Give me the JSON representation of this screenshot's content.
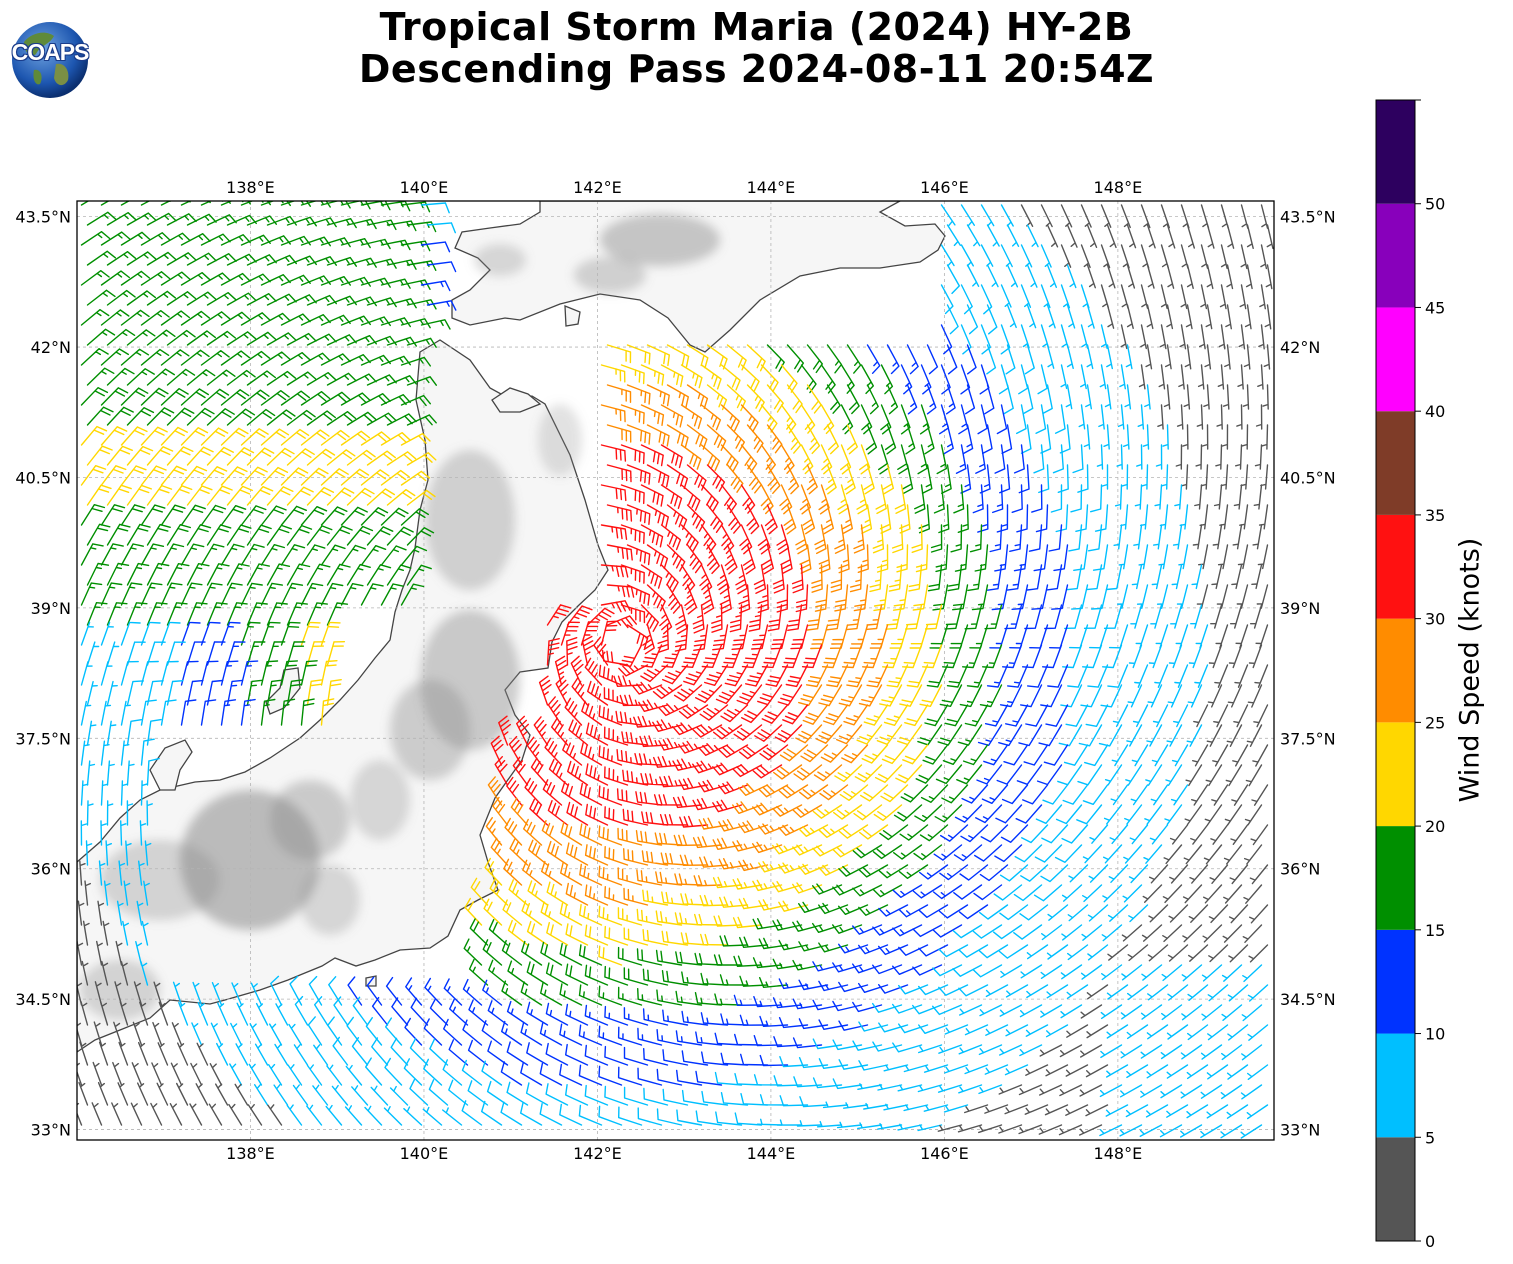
{
  "header": {
    "title_line1": "Tropical Storm Maria (2024) HY-2B",
    "title_line2": "Descending Pass 2024-08-11 20:54Z",
    "logo_text": "COAPS"
  },
  "map": {
    "lon_ticks": [
      {
        "value": 138,
        "label": "138°E"
      },
      {
        "value": 140,
        "label": "140°E"
      },
      {
        "value": 142,
        "label": "142°E"
      },
      {
        "value": 144,
        "label": "144°E"
      },
      {
        "value": 146,
        "label": "146°E"
      },
      {
        "value": 148,
        "label": "148°E"
      }
    ],
    "lat_ticks": [
      {
        "value": 43.5,
        "label": "43.5°N"
      },
      {
        "value": 42,
        "label": "42°N"
      },
      {
        "value": 40.5,
        "label": "40.5°N"
      },
      {
        "value": 39,
        "label": "39°N"
      },
      {
        "value": 37.5,
        "label": "37.5°N"
      },
      {
        "value": 36,
        "label": "36°N"
      },
      {
        "value": 34.5,
        "label": "34.5°N"
      },
      {
        "value": 33,
        "label": "33°N"
      }
    ],
    "lon_range": [
      136.0,
      149.8
    ],
    "lat_range": [
      32.88,
      43.68
    ],
    "storm_center": {
      "lon": 142.3,
      "lat": 38.6
    },
    "grid": true,
    "land_color": "#f6f6f6",
    "terrain_color": "#8a8a8a",
    "coast_color": "#444444"
  },
  "colorbar": {
    "label": "Wind Speed (knots)",
    "ticks": [
      "0",
      "5",
      "10",
      "15",
      "20",
      "25",
      "30",
      "35",
      "40",
      "45",
      "50"
    ],
    "bins": [
      {
        "min": 0,
        "max": 5,
        "color": "#555555"
      },
      {
        "min": 5,
        "max": 10,
        "color": "#00bfff"
      },
      {
        "min": 10,
        "max": 15,
        "color": "#0033ff"
      },
      {
        "min": 15,
        "max": 20,
        "color": "#008f00"
      },
      {
        "min": 20,
        "max": 25,
        "color": "#ffd700"
      },
      {
        "min": 25,
        "max": 30,
        "color": "#ff8c00"
      },
      {
        "min": 30,
        "max": 35,
        "color": "#ff1111"
      },
      {
        "min": 35,
        "max": 40,
        "color": "#7f3c28"
      },
      {
        "min": 40,
        "max": 45,
        "color": "#ff00ff"
      },
      {
        "min": 45,
        "max": 50,
        "color": "#8800bb"
      },
      {
        "min": 50,
        "max": 55,
        "color": "#2d005f"
      }
    ]
  }
}
